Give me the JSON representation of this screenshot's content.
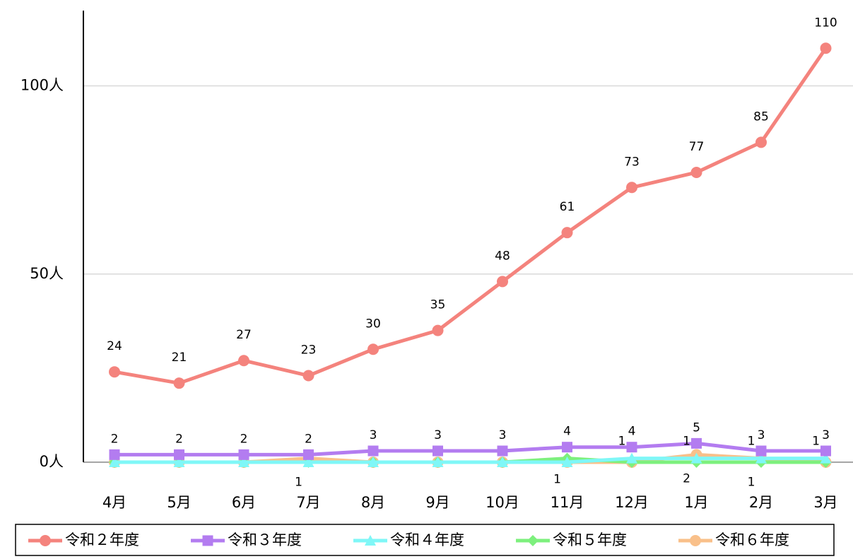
{
  "chart_data": {
    "type": "line",
    "categories": [
      "4月",
      "5月",
      "6月",
      "7月",
      "8月",
      "9月",
      "10月",
      "11月",
      "12月",
      "1月",
      "2月",
      "3月"
    ],
    "ylim": [
      0,
      120
    ],
    "yticks": [
      {
        "value": 0,
        "label": "0人"
      },
      {
        "value": 50,
        "label": "50人"
      },
      {
        "value": 100,
        "label": "100人"
      }
    ],
    "grid": true,
    "legend": "bottom",
    "series": [
      {
        "name": "令和２年度",
        "color": "#f4837d",
        "marker": "circle",
        "values": [
          24,
          21,
          27,
          23,
          30,
          35,
          48,
          61,
          73,
          77,
          85,
          110
        ]
      },
      {
        "name": "令和３年度",
        "color": "#b37cf0",
        "marker": "square",
        "values": [
          2,
          2,
          2,
          2,
          3,
          3,
          3,
          4,
          4,
          5,
          3,
          3
        ]
      },
      {
        "name": "令和４年度",
        "color": "#7ff7f7",
        "marker": "triangle",
        "values": [
          0,
          0,
          0,
          0,
          0,
          0,
          0,
          0,
          1,
          1,
          1,
          1
        ],
        "value_labels": [
          null,
          null,
          null,
          null,
          null,
          null,
          null,
          null,
          "1",
          "1",
          "1",
          "1"
        ]
      },
      {
        "name": "令和５年度",
        "color": "#7df07d",
        "marker": "diamond",
        "values": [
          0,
          0,
          0,
          0,
          0,
          0,
          0,
          1,
          0,
          0,
          0,
          0
        ],
        "value_labels": [
          null,
          null,
          null,
          null,
          null,
          null,
          null,
          "1",
          null,
          null,
          null,
          null
        ]
      },
      {
        "name": "令和６年度",
        "color": "#f9c08a",
        "marker": "circle",
        "values": [
          0,
          0,
          0,
          1,
          0,
          0,
          0,
          0,
          0,
          2,
          1,
          0
        ],
        "value_labels": [
          null,
          null,
          null,
          "1",
          null,
          null,
          null,
          null,
          null,
          "2",
          "1",
          null
        ]
      }
    ]
  }
}
